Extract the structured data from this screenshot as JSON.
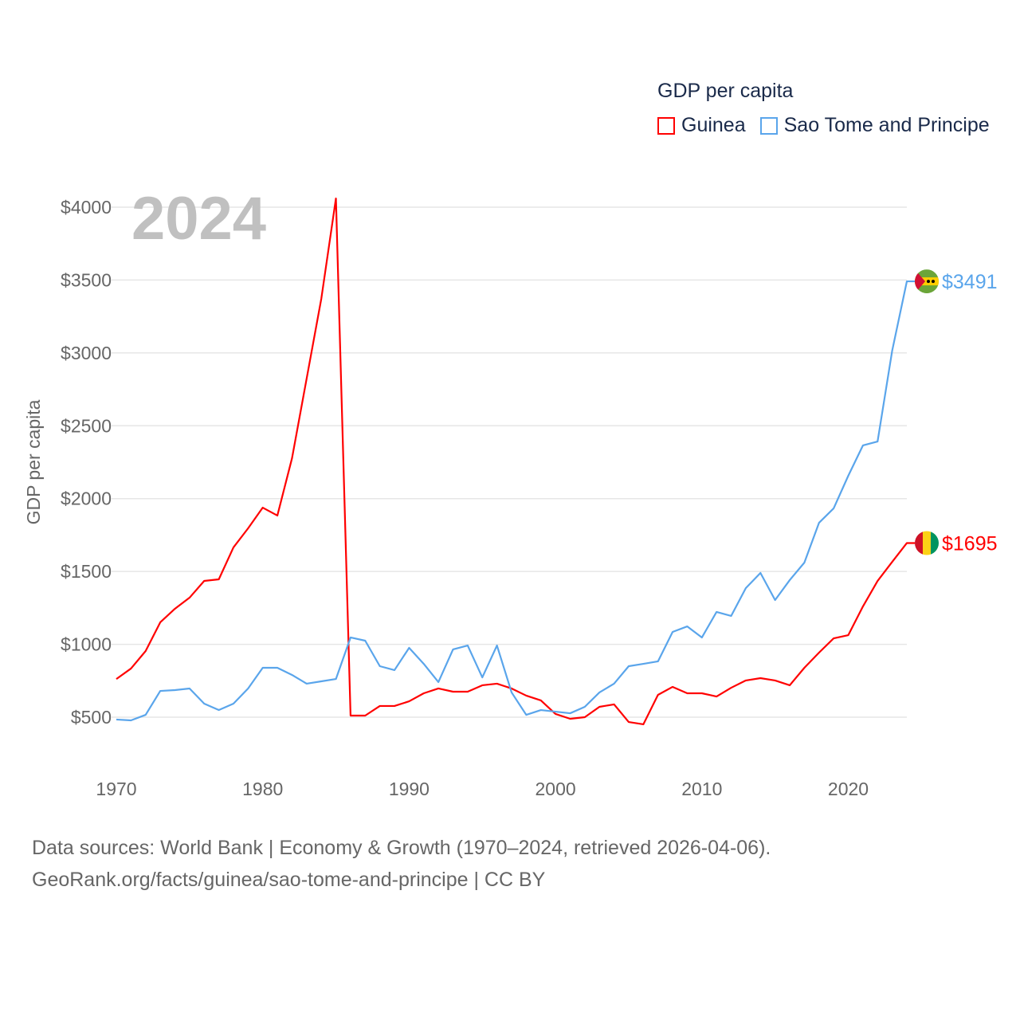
{
  "chart_data": {
    "type": "line",
    "title": "GDP per capita",
    "ylabel": "GDP per capita",
    "xlabel": "",
    "year_label": "2024",
    "ylim": [
      300,
      4100
    ],
    "xlim": [
      1970,
      2024
    ],
    "yticks": [
      500,
      1000,
      1500,
      2000,
      2500,
      3000,
      3500,
      4000
    ],
    "ytick_labels": [
      "$500",
      "$1000",
      "$1500",
      "$2000",
      "$2500",
      "$3000",
      "$3500",
      "$4000"
    ],
    "xticks": [
      1970,
      1980,
      1990,
      2000,
      2010,
      2020
    ],
    "xtick_labels": [
      "1970",
      "1980",
      "1990",
      "2000",
      "2010",
      "2020"
    ],
    "grid": true,
    "legend_position": "top-right",
    "x": [
      1970,
      1971,
      1972,
      1973,
      1974,
      1975,
      1976,
      1977,
      1978,
      1979,
      1980,
      1981,
      1982,
      1983,
      1984,
      1985,
      1986,
      1987,
      1988,
      1989,
      1990,
      1991,
      1992,
      1993,
      1994,
      1995,
      1996,
      1997,
      1998,
      1999,
      2000,
      2001,
      2002,
      2003,
      2004,
      2005,
      2006,
      2007,
      2008,
      2009,
      2010,
      2011,
      2012,
      2013,
      2014,
      2015,
      2016,
      2017,
      2018,
      2019,
      2020,
      2021,
      2022,
      2023,
      2024
    ],
    "series": [
      {
        "name": "Guinea",
        "color": "#ff0000",
        "end_label": "$1695",
        "values": [
          762,
          834,
          954,
          1151,
          1244,
          1320,
          1435,
          1446,
          1665,
          1796,
          1938,
          1884,
          2277,
          2824,
          3371,
          4060,
          511,
          511,
          577,
          577,
          609,
          664,
          697,
          675,
          675,
          719,
          730,
          697,
          648,
          615,
          522,
          489,
          500,
          571,
          588,
          467,
          451,
          653,
          708,
          664,
          664,
          642,
          702,
          752,
          768,
          752,
          719,
          839,
          943,
          1041,
          1063,
          1260,
          1435,
          1566,
          1695
        ]
      },
      {
        "name": "Sao Tome and Principe",
        "color": "#5aa5eb",
        "end_label": "$3491",
        "values": [
          484,
          478,
          516,
          680,
          686,
          697,
          593,
          549,
          593,
          697,
          839,
          839,
          790,
          730,
          746,
          762,
          1047,
          1025,
          850,
          823,
          976,
          866,
          741,
          965,
          992,
          773,
          992,
          670,
          516,
          549,
          538,
          527,
          571,
          670,
          730,
          850,
          866,
          883,
          1085,
          1123,
          1047,
          1222,
          1195,
          1386,
          1490,
          1304,
          1441,
          1561,
          1834,
          1933,
          2157,
          2365,
          2392,
          3016,
          3491
        ]
      }
    ]
  },
  "footer": {
    "line1": "Data sources: World Bank | Economy & Growth (1970–2024, retrieved 2026-04-06).",
    "line2": "GeoRank.org/facts/guinea/sao-tome-and-principe | CC BY"
  }
}
